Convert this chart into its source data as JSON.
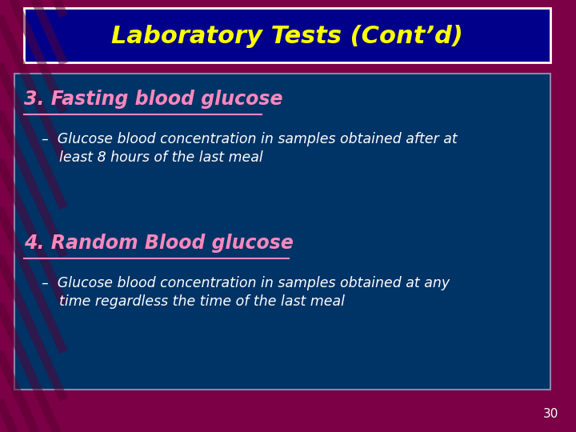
{
  "title": "Laboratory Tests (Cont’d)",
  "title_color": "#FFFF00",
  "title_bg_color": "#00008B",
  "title_border_color": "#FFFFFF",
  "slide_bg_color": "#7B0045",
  "content_bg_color": "#003366",
  "content_border_color": "#8888AA",
  "heading1": "3. Fasting blood glucose",
  "heading1_color": "#FF88BB",
  "heading2": "4. Random Blood glucose",
  "heading2_color": "#FF88BB",
  "bullet1_line1": "–  Glucose blood concentration in samples obtained after at",
  "bullet1_line2": "    least 8 hours of the last meal",
  "bullet2_line1": "–  Glucose blood concentration in samples obtained at any",
  "bullet2_line2": "    time regardless the time of the last meal",
  "bullet_color": "#FFFFFF",
  "page_number": "30",
  "page_number_color": "#FFFFFF"
}
